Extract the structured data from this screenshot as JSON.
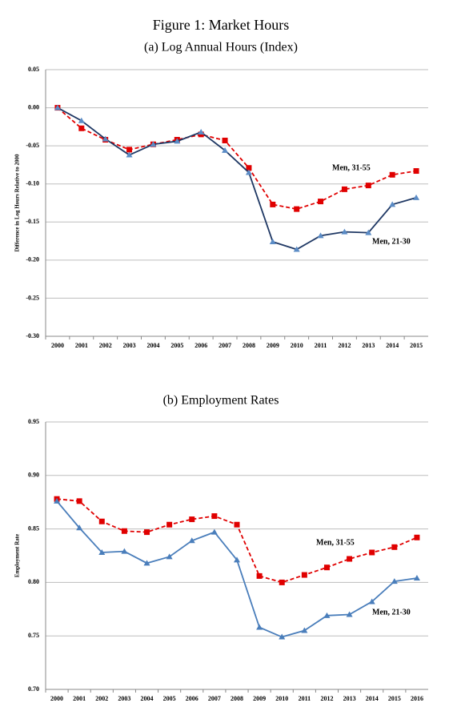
{
  "title": "Figure 1: Market Hours",
  "chart_data": [
    {
      "type": "line",
      "title": "(a) Log Annual Hours (Index)",
      "ylabel": "Difference in Log Hours Relative to 2000",
      "categories": [
        "2000",
        "2001",
        "2002",
        "2003",
        "2004",
        "2005",
        "2006",
        "2007",
        "2008",
        "2009",
        "2010",
        "2011",
        "2012",
        "2013",
        "2014",
        "2015"
      ],
      "series": [
        {
          "name": "Men, 31-55",
          "color": "#e00000",
          "linestyle": "dashed",
          "marker": "square",
          "values": [
            0.0,
            -0.027,
            -0.042,
            -0.055,
            -0.048,
            -0.042,
            -0.035,
            -0.043,
            -0.079,
            -0.127,
            -0.133,
            -0.123,
            -0.107,
            -0.102,
            -0.088,
            -0.083
          ]
        },
        {
          "name": "Men, 21-30",
          "color": "#1f3864",
          "marker_color": "#5b8cc6",
          "linestyle": "solid",
          "marker": "triangle",
          "values": [
            0.0,
            -0.017,
            -0.041,
            -0.062,
            -0.048,
            -0.044,
            -0.032,
            -0.056,
            -0.085,
            -0.176,
            -0.186,
            -0.168,
            -0.163,
            -0.164,
            -0.127,
            -0.118
          ]
        }
      ],
      "ylim": [
        -0.3,
        0.05
      ],
      "yticks": [
        0.05,
        {
          "value": 0,
          "label": "0.00"
        },
        -0.05,
        {
          "value": -0.1,
          "label": "-0.10"
        },
        -0.15,
        {
          "value": -0.2,
          "label": "-0.20"
        },
        -0.25,
        {
          "value": -0.3,
          "label": "-0.30"
        }
      ],
      "grid": true
    },
    {
      "type": "line",
      "title": "(b) Employment Rates",
      "ylabel": "Employment Rate",
      "categories": [
        "2000",
        "2001",
        "2002",
        "2003",
        "2004",
        "2005",
        "2006",
        "2007",
        "2008",
        "2009",
        "2010",
        "2011",
        "2012",
        "2013",
        "2014",
        "2015",
        "2016"
      ],
      "series": [
        {
          "name": "Men, 31-55",
          "color": "#e00000",
          "linestyle": "dashed",
          "marker": "square",
          "values": [
            0.878,
            0.876,
            0.857,
            0.848,
            0.847,
            0.854,
            0.859,
            0.862,
            0.854,
            0.806,
            0.8,
            0.807,
            0.814,
            0.822,
            0.828,
            0.833,
            0.842
          ]
        },
        {
          "name": "Men, 21-30",
          "color": "#4a7ebb",
          "marker_color": "#4a7ebb",
          "linestyle": "solid",
          "marker": "triangle",
          "values": [
            0.876,
            0.851,
            0.828,
            0.829,
            0.818,
            0.824,
            0.839,
            0.847,
            0.821,
            0.758,
            0.749,
            0.755,
            0.769,
            0.77,
            0.782,
            0.801,
            0.804
          ]
        }
      ],
      "ylim": [
        0.7,
        0.95
      ],
      "yticks": [
        0.95,
        {
          "value": 0.9,
          "label": "0.90"
        },
        0.85,
        {
          "value": 0.8,
          "label": "0.80"
        },
        0.75,
        {
          "value": 0.7,
          "label": "0.70"
        }
      ],
      "grid": true
    }
  ]
}
